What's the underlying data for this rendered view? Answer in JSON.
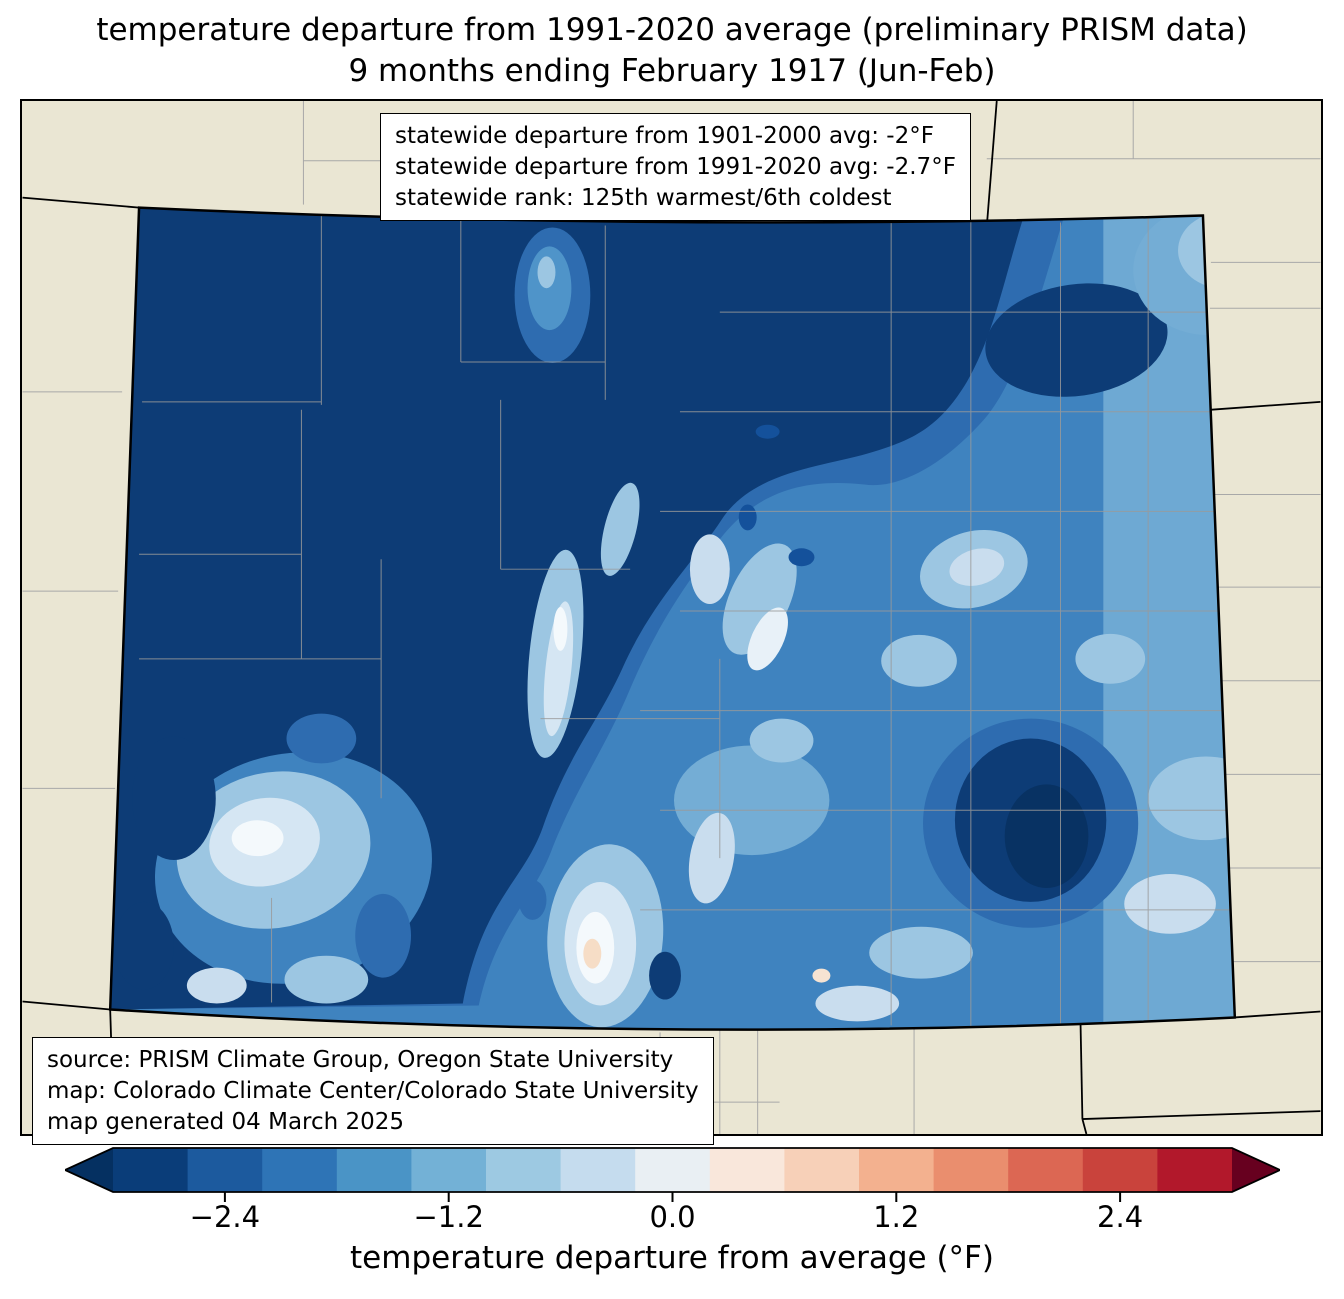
{
  "title": {
    "line1": "temperature departure from 1991-2020 average (preliminary PRISM data)",
    "line2": "9 months ending February 1917 (Jun-Feb)"
  },
  "stats_box": {
    "line1": "statewide departure from 1901-2000 avg: -2°F",
    "line2": "statewide departure from 1991-2020 avg: -2.7°F",
    "line3": "statewide rank: 125th warmest/6th coldest"
  },
  "source_box": {
    "line1": "source: PRISM Climate Group, Oregon State University",
    "line2": "map: Colorado Climate Center/Colorado State University",
    "line3": "map generated 04 March 2025"
  },
  "colorbar": {
    "label": "temperature departure from average (°F)",
    "ticks": [
      "−2.4",
      "−1.2",
      "0.0",
      "1.2",
      "2.4"
    ],
    "tick_values": [
      -2.4,
      -1.2,
      0.0,
      1.2,
      2.4
    ],
    "range": [
      -3,
      3
    ],
    "segment_colors": [
      "#0a3d79",
      "#1c5a9e",
      "#2e74b6",
      "#4a94c6",
      "#73b1d6",
      "#9dc9e2",
      "#c5dcee",
      "#e9eff3",
      "#f9e7db",
      "#f7d0b8",
      "#f3b18f",
      "#ea8e6e",
      "#dc6753",
      "#c9433c",
      "#b2182b"
    ],
    "under_color": "#053061",
    "over_color": "#67001f"
  },
  "map": {
    "region": "Colorado",
    "background_color": "#eae6d3",
    "state_border_color": "#000000",
    "county_border_color": "#9a9a9a",
    "data_type": "temperature departure (°F), PRISM preliminary"
  }
}
